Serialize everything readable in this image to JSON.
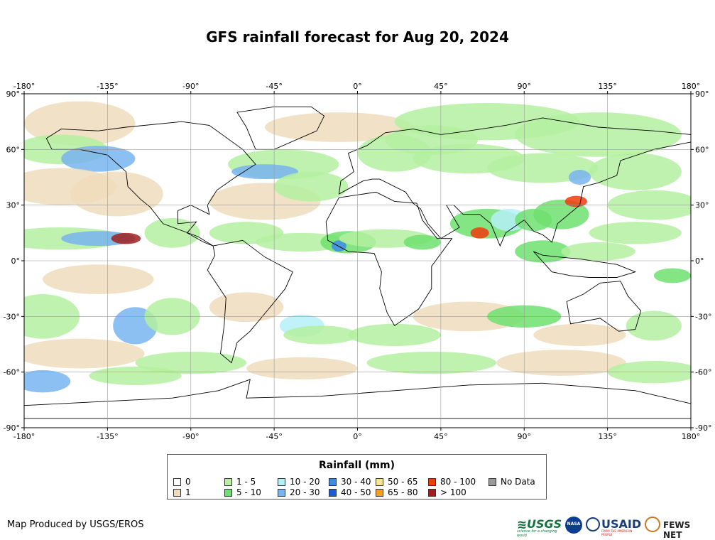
{
  "title": "GFS rainfall forecast for Aug 20, 2024",
  "map": {
    "lon_ticks": [
      "-180°",
      "-135°",
      "-90°",
      "-45°",
      "0°",
      "45°",
      "90°",
      "135°",
      "180°"
    ],
    "lat_ticks": [
      "90°",
      "60°",
      "30°",
      "0°",
      "-30°",
      "-60°",
      "-90°"
    ],
    "colors": {
      "ocean": "#ffffff",
      "land": "#ffffff",
      "border": "#000000",
      "grid": "#9a9a9a"
    }
  },
  "legend": {
    "title": "Rainfall (mm)",
    "items": [
      {
        "label": "0",
        "color": "#ffffff"
      },
      {
        "label": "1",
        "color": "#eedcbc"
      },
      {
        "label": "1 - 5",
        "color": "#b4f0a0"
      },
      {
        "label": "5 - 10",
        "color": "#6ee06e"
      },
      {
        "label": "10 - 20",
        "color": "#b4f0f8"
      },
      {
        "label": "20 - 30",
        "color": "#78b4f0"
      },
      {
        "label": "30 - 40",
        "color": "#3c8ce6"
      },
      {
        "label": "40 - 50",
        "color": "#1e5ad2"
      },
      {
        "label": "50 - 65",
        "color": "#fae68c"
      },
      {
        "label": "65 - 80",
        "color": "#f5a01e"
      },
      {
        "label": "80 - 100",
        "color": "#f03c0a"
      },
      {
        "label": "> 100",
        "color": "#a01e1e"
      },
      {
        "label": "No Data",
        "color": "#999999"
      }
    ]
  },
  "credit": "Map Produced by USGS/EROS",
  "logos": {
    "usgs": "USGS",
    "usgs_tagline": "science for a changing world",
    "nasa": "NASA",
    "usaid": "USAID",
    "usaid_tagline": "FROM THE AMERICAN PEOPLE",
    "fews": "FEWS NET"
  }
}
